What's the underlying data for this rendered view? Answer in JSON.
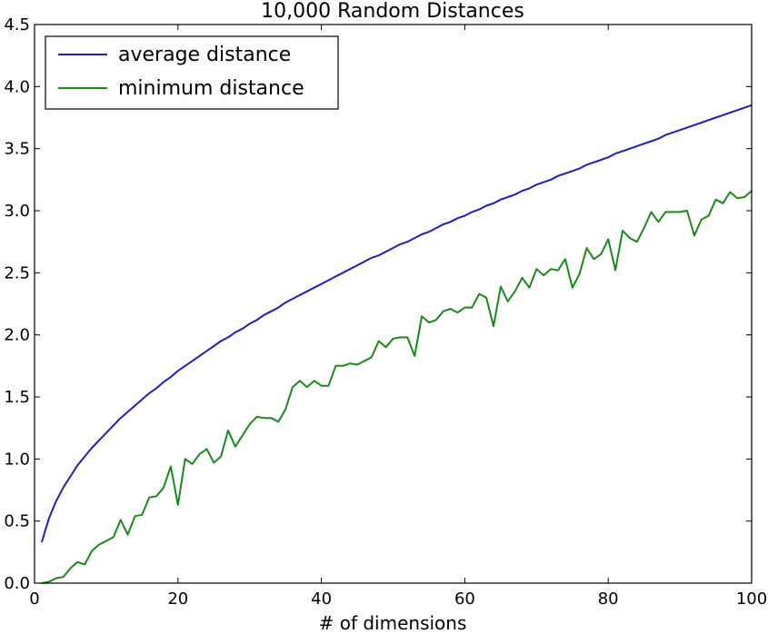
{
  "chart_data": {
    "type": "line",
    "title": "10,000 Random Distances",
    "xlabel": "# of dimensions",
    "ylabel": "",
    "xlim": [
      0,
      100
    ],
    "ylim": [
      0.0,
      4.5
    ],
    "xticks": [
      "0",
      "20",
      "40",
      "60",
      "80",
      "100"
    ],
    "yticks": [
      "0.0",
      "0.5",
      "1.0",
      "1.5",
      "2.0",
      "2.5",
      "3.0",
      "3.5",
      "4.0",
      "4.5"
    ],
    "legend_position": "top-left",
    "grid": false,
    "series": [
      {
        "name": "average distance",
        "color": "#1f1fbf",
        "x": [
          1,
          2,
          3,
          4,
          5,
          6,
          7,
          8,
          9,
          10,
          11,
          12,
          13,
          14,
          15,
          16,
          17,
          18,
          19,
          20,
          21,
          22,
          23,
          24,
          25,
          26,
          27,
          28,
          29,
          30,
          31,
          32,
          33,
          34,
          35,
          36,
          37,
          38,
          39,
          40,
          41,
          42,
          43,
          44,
          45,
          46,
          47,
          48,
          49,
          50,
          51,
          52,
          53,
          54,
          55,
          56,
          57,
          58,
          59,
          60,
          61,
          62,
          63,
          64,
          65,
          66,
          67,
          68,
          69,
          70,
          71,
          72,
          73,
          74,
          75,
          76,
          77,
          78,
          79,
          80,
          81,
          82,
          83,
          84,
          85,
          86,
          87,
          88,
          89,
          90,
          91,
          92,
          93,
          94,
          95,
          96,
          97,
          98,
          99,
          100
        ],
        "y": [
          0.33,
          0.52,
          0.66,
          0.77,
          0.86,
          0.95,
          1.02,
          1.09,
          1.15,
          1.21,
          1.27,
          1.33,
          1.38,
          1.43,
          1.48,
          1.53,
          1.57,
          1.62,
          1.66,
          1.71,
          1.75,
          1.79,
          1.83,
          1.87,
          1.91,
          1.95,
          1.98,
          2.02,
          2.05,
          2.09,
          2.12,
          2.16,
          2.19,
          2.22,
          2.26,
          2.29,
          2.32,
          2.35,
          2.38,
          2.41,
          2.44,
          2.47,
          2.5,
          2.53,
          2.56,
          2.59,
          2.62,
          2.64,
          2.67,
          2.7,
          2.73,
          2.75,
          2.78,
          2.81,
          2.83,
          2.86,
          2.89,
          2.91,
          2.94,
          2.96,
          2.99,
          3.01,
          3.04,
          3.06,
          3.09,
          3.11,
          3.13,
          3.16,
          3.18,
          3.21,
          3.23,
          3.25,
          3.28,
          3.3,
          3.32,
          3.34,
          3.37,
          3.39,
          3.41,
          3.43,
          3.46,
          3.48,
          3.5,
          3.52,
          3.54,
          3.56,
          3.58,
          3.61,
          3.63,
          3.65,
          3.67,
          3.69,
          3.71,
          3.73,
          3.75,
          3.77,
          3.79,
          3.81,
          3.83,
          3.85
        ]
      },
      {
        "name": "minimum distance",
        "color": "#1a8a1a",
        "x": [
          1,
          2,
          3,
          4,
          5,
          6,
          7,
          8,
          9,
          10,
          11,
          12,
          13,
          14,
          15,
          16,
          17,
          18,
          19,
          20,
          21,
          22,
          23,
          24,
          25,
          26,
          27,
          28,
          29,
          30,
          31,
          32,
          33,
          34,
          35,
          36,
          37,
          38,
          39,
          40,
          41,
          42,
          43,
          44,
          45,
          46,
          47,
          48,
          49,
          50,
          51,
          52,
          53,
          54,
          55,
          56,
          57,
          58,
          59,
          60,
          61,
          62,
          63,
          64,
          65,
          66,
          67,
          68,
          69,
          70,
          71,
          72,
          73,
          74,
          75,
          76,
          77,
          78,
          79,
          80,
          81,
          82,
          83,
          84,
          85,
          86,
          87,
          88,
          89,
          90,
          91,
          92,
          93,
          94,
          95,
          96,
          97,
          98,
          99,
          100
        ],
        "y": [
          0.0,
          0.01,
          0.04,
          0.05,
          0.12,
          0.17,
          0.15,
          0.26,
          0.31,
          0.34,
          0.37,
          0.51,
          0.39,
          0.54,
          0.55,
          0.69,
          0.7,
          0.77,
          0.94,
          0.63,
          1.0,
          0.96,
          1.04,
          1.08,
          0.97,
          1.02,
          1.23,
          1.1,
          1.19,
          1.28,
          1.34,
          1.33,
          1.33,
          1.3,
          1.4,
          1.58,
          1.63,
          1.58,
          1.63,
          1.59,
          1.59,
          1.75,
          1.75,
          1.77,
          1.76,
          1.79,
          1.82,
          1.95,
          1.9,
          1.97,
          1.98,
          1.98,
          1.83,
          2.15,
          2.1,
          2.12,
          2.19,
          2.21,
          2.18,
          2.22,
          2.22,
          2.33,
          2.3,
          2.07,
          2.39,
          2.27,
          2.35,
          2.46,
          2.38,
          2.53,
          2.48,
          2.53,
          2.52,
          2.61,
          2.38,
          2.49,
          2.7,
          2.61,
          2.65,
          2.77,
          2.52,
          2.84,
          2.78,
          2.75,
          2.86,
          2.99,
          2.91,
          2.99,
          2.99,
          2.99,
          3.0,
          2.8,
          2.93,
          2.96,
          3.09,
          3.06,
          3.15,
          3.1,
          3.11,
          3.16
        ]
      }
    ]
  }
}
